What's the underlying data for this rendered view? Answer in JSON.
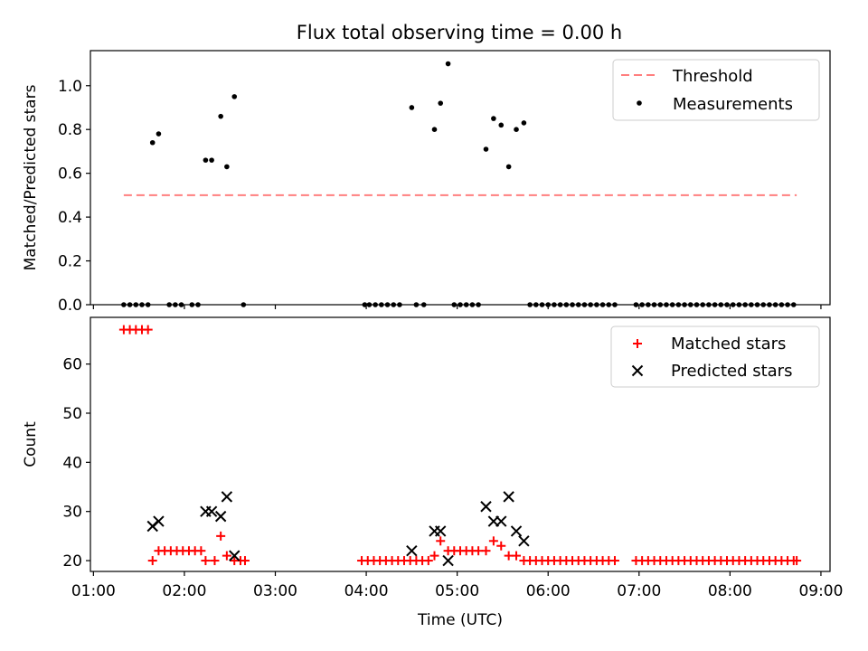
{
  "title": "Flux total observing time = 0.00 h",
  "chart_data": [
    {
      "type": "scatter",
      "ylabel": "Matched/Predicted stars",
      "xlim": [
        "00:58",
        "09:06"
      ],
      "ylim": [
        0,
        1.16
      ],
      "yticks": [
        "0.0",
        "0.2",
        "0.4",
        "0.6",
        "0.8",
        "1.0"
      ],
      "legend": {
        "position": "top-right",
        "entries": [
          "Threshold",
          "Measurements"
        ]
      },
      "threshold": {
        "name": "Threshold",
        "value": 0.5,
        "x": [
          "01:20",
          "08:44"
        ],
        "color": "#ff7f7f"
      },
      "measurements": {
        "name": "Measurements",
        "color": "#000000",
        "points": [
          [
            "01:20",
            0
          ],
          [
            "01:24",
            0
          ],
          [
            "01:28",
            0
          ],
          [
            "01:32",
            0
          ],
          [
            "01:36",
            0
          ],
          [
            "01:39",
            0.74
          ],
          [
            "01:43",
            0.78
          ],
          [
            "01:50",
            0
          ],
          [
            "01:54",
            0
          ],
          [
            "01:58",
            0
          ],
          [
            "02:05",
            0
          ],
          [
            "02:09",
            0
          ],
          [
            "02:14",
            0.66
          ],
          [
            "02:18",
            0.66
          ],
          [
            "02:24",
            0.86
          ],
          [
            "02:28",
            0.63
          ],
          [
            "02:33",
            0.95
          ],
          [
            "02:39",
            0
          ],
          [
            "03:59",
            0
          ],
          [
            "04:02",
            0
          ],
          [
            "04:06",
            0
          ],
          [
            "04:10",
            0
          ],
          [
            "04:14",
            0
          ],
          [
            "04:18",
            0
          ],
          [
            "04:22",
            0
          ],
          [
            "04:30",
            0.9
          ],
          [
            "04:33",
            0
          ],
          [
            "04:38",
            0
          ],
          [
            "04:45",
            0.8
          ],
          [
            "04:49",
            0.92
          ],
          [
            "04:54",
            1.1
          ],
          [
            "04:58",
            0
          ],
          [
            "05:02",
            0
          ],
          [
            "05:06",
            0
          ],
          [
            "05:10",
            0
          ],
          [
            "05:14",
            0
          ],
          [
            "05:19",
            0.71
          ],
          [
            "05:24",
            0.85
          ],
          [
            "05:29",
            0.82
          ],
          [
            "05:34",
            0.63
          ],
          [
            "05:39",
            0.8
          ],
          [
            "05:44",
            0.83
          ],
          [
            "05:48",
            0
          ],
          [
            "05:52",
            0
          ],
          [
            "05:56",
            0
          ],
          [
            "06:00",
            0
          ],
          [
            "06:04",
            0
          ],
          [
            "06:08",
            0
          ],
          [
            "06:12",
            0
          ],
          [
            "06:16",
            0
          ],
          [
            "06:20",
            0
          ],
          [
            "06:24",
            0
          ],
          [
            "06:28",
            0
          ],
          [
            "06:32",
            0
          ],
          [
            "06:36",
            0
          ],
          [
            "06:40",
            0
          ],
          [
            "06:44",
            0
          ],
          [
            "06:58",
            0
          ],
          [
            "07:02",
            0
          ],
          [
            "07:06",
            0
          ],
          [
            "07:10",
            0
          ],
          [
            "07:14",
            0
          ],
          [
            "07:18",
            0
          ],
          [
            "07:22",
            0
          ],
          [
            "07:26",
            0
          ],
          [
            "07:30",
            0
          ],
          [
            "07:34",
            0
          ],
          [
            "07:38",
            0
          ],
          [
            "07:42",
            0
          ],
          [
            "07:46",
            0
          ],
          [
            "07:50",
            0
          ],
          [
            "07:54",
            0
          ],
          [
            "07:58",
            0
          ],
          [
            "08:02",
            0
          ],
          [
            "08:06",
            0
          ],
          [
            "08:10",
            0
          ],
          [
            "08:14",
            0
          ],
          [
            "08:18",
            0
          ],
          [
            "08:22",
            0
          ],
          [
            "08:26",
            0
          ],
          [
            "08:30",
            0
          ],
          [
            "08:34",
            0
          ],
          [
            "08:38",
            0
          ],
          [
            "08:42",
            0
          ]
        ]
      }
    },
    {
      "type": "scatter",
      "xlabel": "Time (UTC)",
      "ylabel": "Count",
      "xlim": [
        "00:58",
        "09:06"
      ],
      "ylim": [
        17.8,
        69.5
      ],
      "xticks": [
        "01:00",
        "02:00",
        "03:00",
        "04:00",
        "05:00",
        "06:00",
        "07:00",
        "08:00",
        "09:00"
      ],
      "yticks": [
        "20",
        "30",
        "40",
        "50",
        "60"
      ],
      "legend": {
        "position": "top-right",
        "entries": [
          "Matched stars",
          "Predicted stars"
        ]
      },
      "series": [
        {
          "name": "Matched stars",
          "marker": "+",
          "color": "#ff0000",
          "points": [
            [
              "01:20",
              67
            ],
            [
              "01:24",
              67
            ],
            [
              "01:28",
              67
            ],
            [
              "01:32",
              67
            ],
            [
              "01:36",
              67
            ],
            [
              "01:39",
              20
            ],
            [
              "01:43",
              22
            ],
            [
              "01:47",
              22
            ],
            [
              "01:51",
              22
            ],
            [
              "01:55",
              22
            ],
            [
              "01:59",
              22
            ],
            [
              "02:03",
              22
            ],
            [
              "02:07",
              22
            ],
            [
              "02:11",
              22
            ],
            [
              "02:14",
              20
            ],
            [
              "02:20",
              20
            ],
            [
              "02:24",
              25
            ],
            [
              "02:28",
              21
            ],
            [
              "02:33",
              20
            ],
            [
              "02:37",
              20
            ],
            [
              "02:40",
              20
            ],
            [
              "03:57",
              20
            ],
            [
              "04:01",
              20
            ],
            [
              "04:05",
              20
            ],
            [
              "04:09",
              20
            ],
            [
              "04:13",
              20
            ],
            [
              "04:17",
              20
            ],
            [
              "04:21",
              20
            ],
            [
              "04:25",
              20
            ],
            [
              "04:29",
              20
            ],
            [
              "04:33",
              20
            ],
            [
              "04:37",
              20
            ],
            [
              "04:41",
              20
            ],
            [
              "04:45",
              21
            ],
            [
              "04:49",
              24
            ],
            [
              "04:54",
              22
            ],
            [
              "04:58",
              22
            ],
            [
              "05:02",
              22
            ],
            [
              "05:06",
              22
            ],
            [
              "05:10",
              22
            ],
            [
              "05:14",
              22
            ],
            [
              "05:19",
              22
            ],
            [
              "05:24",
              24
            ],
            [
              "05:29",
              23
            ],
            [
              "05:34",
              21
            ],
            [
              "05:39",
              21
            ],
            [
              "05:44",
              20
            ],
            [
              "05:48",
              20
            ],
            [
              "05:52",
              20
            ],
            [
              "05:56",
              20
            ],
            [
              "06:00",
              20
            ],
            [
              "06:04",
              20
            ],
            [
              "06:08",
              20
            ],
            [
              "06:12",
              20
            ],
            [
              "06:16",
              20
            ],
            [
              "06:20",
              20
            ],
            [
              "06:24",
              20
            ],
            [
              "06:28",
              20
            ],
            [
              "06:32",
              20
            ],
            [
              "06:36",
              20
            ],
            [
              "06:40",
              20
            ],
            [
              "06:44",
              20
            ],
            [
              "06:58",
              20
            ],
            [
              "07:02",
              20
            ],
            [
              "07:06",
              20
            ],
            [
              "07:10",
              20
            ],
            [
              "07:14",
              20
            ],
            [
              "07:18",
              20
            ],
            [
              "07:22",
              20
            ],
            [
              "07:26",
              20
            ],
            [
              "07:30",
              20
            ],
            [
              "07:34",
              20
            ],
            [
              "07:38",
              20
            ],
            [
              "07:42",
              20
            ],
            [
              "07:46",
              20
            ],
            [
              "07:50",
              20
            ],
            [
              "07:54",
              20
            ],
            [
              "07:58",
              20
            ],
            [
              "08:02",
              20
            ],
            [
              "08:06",
              20
            ],
            [
              "08:10",
              20
            ],
            [
              "08:14",
              20
            ],
            [
              "08:18",
              20
            ],
            [
              "08:22",
              20
            ],
            [
              "08:26",
              20
            ],
            [
              "08:30",
              20
            ],
            [
              "08:34",
              20
            ],
            [
              "08:38",
              20
            ],
            [
              "08:42",
              20
            ],
            [
              "08:44",
              20
            ]
          ]
        },
        {
          "name": "Predicted stars",
          "marker": "x",
          "color": "#000000",
          "points": [
            [
              "01:39",
              27
            ],
            [
              "01:43",
              28
            ],
            [
              "02:14",
              30
            ],
            [
              "02:18",
              30
            ],
            [
              "02:24",
              29
            ],
            [
              "02:28",
              33
            ],
            [
              "02:33",
              21
            ],
            [
              "04:30",
              22
            ],
            [
              "04:45",
              26
            ],
            [
              "04:49",
              26
            ],
            [
              "04:54",
              20
            ],
            [
              "05:19",
              31
            ],
            [
              "05:24",
              28
            ],
            [
              "05:29",
              28
            ],
            [
              "05:34",
              33
            ],
            [
              "05:39",
              26
            ],
            [
              "05:44",
              24
            ]
          ]
        }
      ]
    }
  ]
}
